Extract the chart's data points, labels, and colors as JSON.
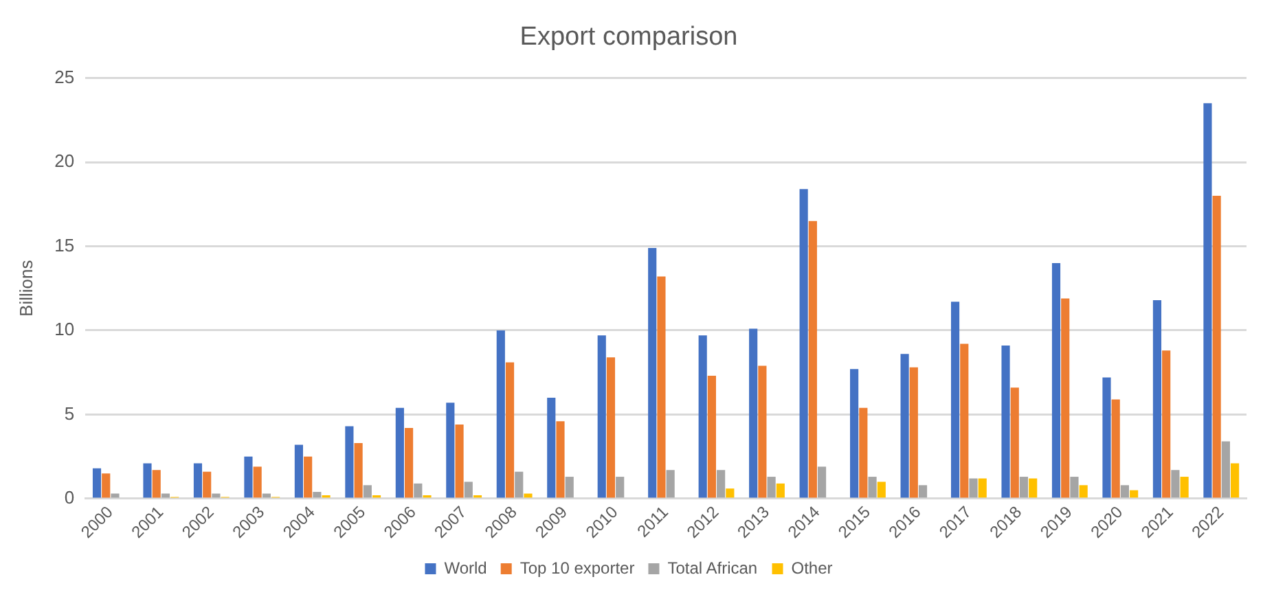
{
  "chart_data": {
    "type": "bar",
    "title": "Export comparison",
    "ylabel": "Billions",
    "categories": [
      "2000",
      "2001",
      "2002",
      "2003",
      "2004",
      "2005",
      "2006",
      "2007",
      "2008",
      "2009",
      "2010",
      "2011",
      "2012",
      "2013",
      "2014",
      "2015",
      "2016",
      "2017",
      "2018",
      "2019",
      "2020",
      "2021",
      "2022"
    ],
    "series": [
      {
        "name": "World",
        "color": "#4472c4",
        "values": [
          1.8,
          2.1,
          2.1,
          2.5,
          3.2,
          4.3,
          5.4,
          5.7,
          10.0,
          6.0,
          9.7,
          14.9,
          9.7,
          10.1,
          18.4,
          7.7,
          8.6,
          11.7,
          9.1,
          14.0,
          7.2,
          11.8,
          23.5
        ]
      },
      {
        "name": "Top 10 exporter",
        "color": "#ed7d31",
        "values": [
          1.5,
          1.7,
          1.6,
          1.9,
          2.5,
          3.3,
          4.2,
          4.4,
          8.1,
          4.6,
          8.4,
          13.2,
          7.3,
          7.9,
          16.5,
          5.4,
          7.8,
          9.2,
          6.6,
          11.9,
          5.9,
          8.8,
          18.0
        ]
      },
      {
        "name": "Total African",
        "color": "#a5a5a5",
        "values": [
          0.3,
          0.3,
          0.3,
          0.3,
          0.4,
          0.8,
          0.9,
          1.0,
          1.6,
          1.3,
          1.3,
          1.7,
          1.7,
          1.3,
          1.9,
          1.3,
          0.8,
          1.2,
          1.3,
          1.3,
          0.8,
          1.7,
          3.4
        ]
      },
      {
        "name": "Other",
        "color": "#ffc000",
        "values": [
          0,
          0.1,
          0.1,
          0.1,
          0.2,
          0.2,
          0.2,
          0.2,
          0.3,
          0,
          0,
          0,
          0.6,
          0.9,
          0,
          1.0,
          0,
          1.2,
          1.2,
          0.8,
          0.5,
          1.3,
          2.1
        ]
      }
    ],
    "ylim": [
      0,
      25
    ],
    "yticks": [
      0,
      5,
      10,
      15,
      20,
      25
    ],
    "grid": "y",
    "legend": "bottom"
  }
}
